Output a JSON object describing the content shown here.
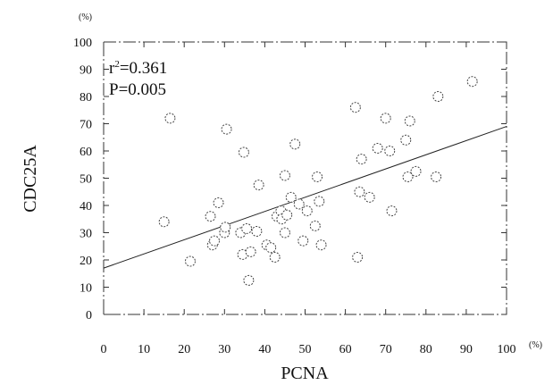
{
  "chart_data": {
    "type": "scatter",
    "xlabel": "PCNA",
    "ylabel": "CDC25A",
    "x_unit": "(%)",
    "y_unit": "(%)",
    "xlim": [
      0,
      100
    ],
    "ylim": [
      0,
      100
    ],
    "x_ticks": [
      0,
      10,
      20,
      30,
      40,
      50,
      60,
      70,
      80,
      90,
      100
    ],
    "y_ticks": [
      0,
      10,
      20,
      30,
      40,
      50,
      60,
      70,
      80,
      90,
      100
    ],
    "grid": false,
    "annotations": {
      "r2_prefix": "r",
      "r2_sup": "2",
      "r2_value": "=0.361",
      "p_text": "P=0.005"
    },
    "regression": {
      "x": [
        0,
        100
      ],
      "y": [
        17,
        69
      ]
    },
    "points": [
      {
        "x": 15,
        "y": 34
      },
      {
        "x": 16.5,
        "y": 72
      },
      {
        "x": 21.5,
        "y": 19.5
      },
      {
        "x": 26.5,
        "y": 36
      },
      {
        "x": 27,
        "y": 25.5
      },
      {
        "x": 27.5,
        "y": 27
      },
      {
        "x": 28.5,
        "y": 41
      },
      {
        "x": 30,
        "y": 30
      },
      {
        "x": 30.2,
        "y": 32
      },
      {
        "x": 30.5,
        "y": 68
      },
      {
        "x": 34,
        "y": 30
      },
      {
        "x": 34.5,
        "y": 22
      },
      {
        "x": 34.8,
        "y": 59.5
      },
      {
        "x": 35.5,
        "y": 31.5
      },
      {
        "x": 36,
        "y": 12.5
      },
      {
        "x": 36.5,
        "y": 23
      },
      {
        "x": 38,
        "y": 30.5
      },
      {
        "x": 38.5,
        "y": 47.5
      },
      {
        "x": 40.5,
        "y": 25.5
      },
      {
        "x": 41.5,
        "y": 24.5
      },
      {
        "x": 42.5,
        "y": 21
      },
      {
        "x": 43,
        "y": 36
      },
      {
        "x": 44,
        "y": 38
      },
      {
        "x": 44.2,
        "y": 35
      },
      {
        "x": 45,
        "y": 30
      },
      {
        "x": 45,
        "y": 51
      },
      {
        "x": 45.5,
        "y": 36.5
      },
      {
        "x": 46.5,
        "y": 43
      },
      {
        "x": 47.5,
        "y": 62.5
      },
      {
        "x": 48.5,
        "y": 40.5
      },
      {
        "x": 49.5,
        "y": 27
      },
      {
        "x": 50.5,
        "y": 38
      },
      {
        "x": 52.5,
        "y": 32.5
      },
      {
        "x": 53,
        "y": 50.5
      },
      {
        "x": 53.5,
        "y": 41.5
      },
      {
        "x": 54,
        "y": 25.5
      },
      {
        "x": 62.5,
        "y": 76
      },
      {
        "x": 63,
        "y": 21
      },
      {
        "x": 63.5,
        "y": 45
      },
      {
        "x": 64,
        "y": 57
      },
      {
        "x": 66,
        "y": 43
      },
      {
        "x": 68,
        "y": 61
      },
      {
        "x": 70,
        "y": 72
      },
      {
        "x": 71,
        "y": 60
      },
      {
        "x": 71.5,
        "y": 38
      },
      {
        "x": 75,
        "y": 64
      },
      {
        "x": 75.5,
        "y": 50.5
      },
      {
        "x": 76,
        "y": 71
      },
      {
        "x": 77.5,
        "y": 52.5
      },
      {
        "x": 82.5,
        "y": 50.5
      },
      {
        "x": 83,
        "y": 80
      },
      {
        "x": 91.5,
        "y": 85.5
      }
    ]
  }
}
